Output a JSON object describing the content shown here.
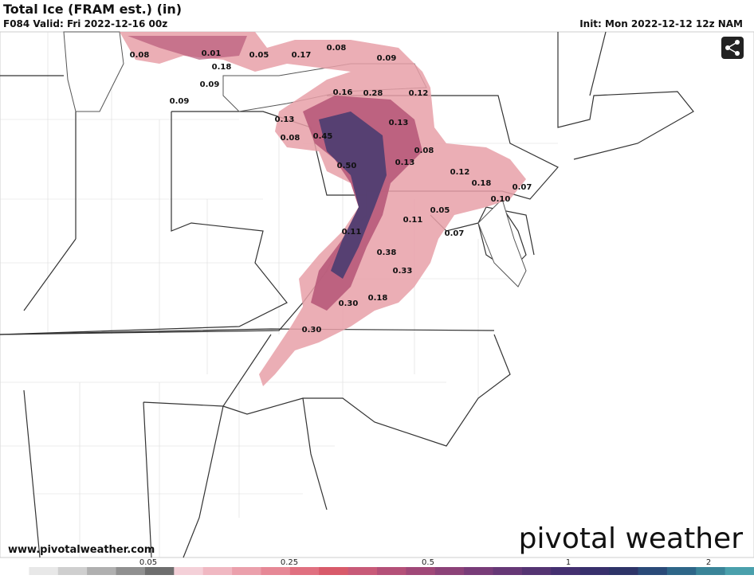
{
  "header": {
    "title": "Total Ice (FRAM est.) (in)",
    "valid": "F084 Valid: Fri 2022-12-16 00z",
    "init": "Init: Mon 2022-12-12 12z NAM"
  },
  "map_labels": [
    "0.08",
    "0.01",
    "0.05",
    "0.17",
    "0.08",
    "0.09",
    "0.18",
    "0.09",
    "0.09",
    "0.16",
    "0.28",
    "0.12",
    "0.13",
    "0.13",
    "0.08",
    "0.45",
    "0.08",
    "0.50",
    "0.13",
    "0.12",
    "0.18",
    "0.07",
    "0.10",
    "0.05",
    "0.11",
    "0.11",
    "0.07",
    "0.38",
    "0.33",
    "0.30",
    "0.18",
    "0.30"
  ],
  "footer": {
    "website": "www.pivotalweather.com",
    "logo": "pivotal weather"
  },
  "colorbar": {
    "ticks": [
      "0.05",
      "0.25",
      "0.5",
      "1",
      "2"
    ]
  }
}
